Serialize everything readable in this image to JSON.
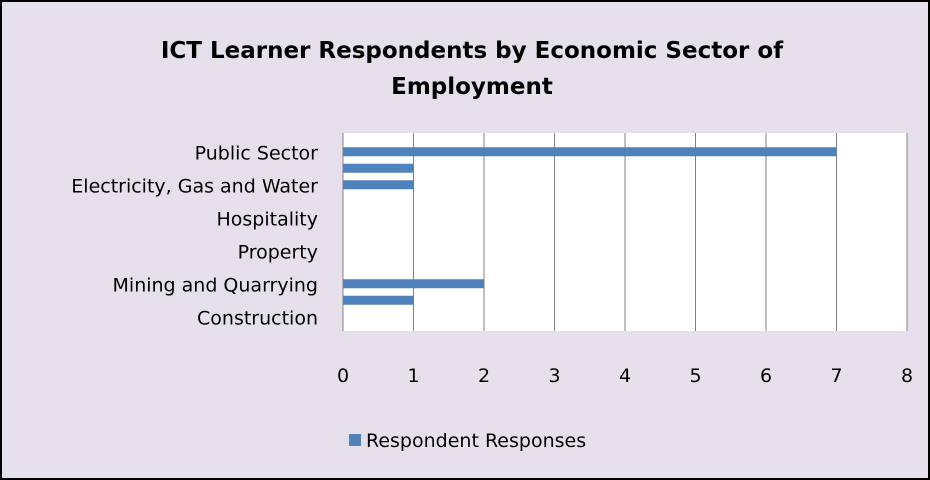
{
  "colors": {
    "background": "#e6e0ec",
    "plot_area": "#ffffff",
    "bar": "#4f81bd",
    "gridline": "#808080"
  },
  "chart_data": {
    "type": "bar",
    "orientation": "horizontal",
    "title_lines": [
      "ICT Learner Respondents by Economic Sector of",
      "Employment"
    ],
    "category_labels": [
      "Public Sector",
      "Electricity, Gas and Water",
      "Hospitality",
      "Property",
      "Mining and Quarrying",
      "Construction"
    ],
    "bar_rows": 12,
    "label_every": 2,
    "series": [
      {
        "name": "Respondent Responses",
        "values": [
          7,
          1,
          1,
          0,
          0,
          0,
          0,
          0,
          2,
          1,
          0,
          0
        ]
      }
    ],
    "xlim": [
      0,
      8
    ],
    "x_ticks": [
      "0",
      "1",
      "2",
      "3",
      "4",
      "5",
      "6",
      "7",
      "8"
    ],
    "grid": true,
    "legend_position": "bottom"
  }
}
